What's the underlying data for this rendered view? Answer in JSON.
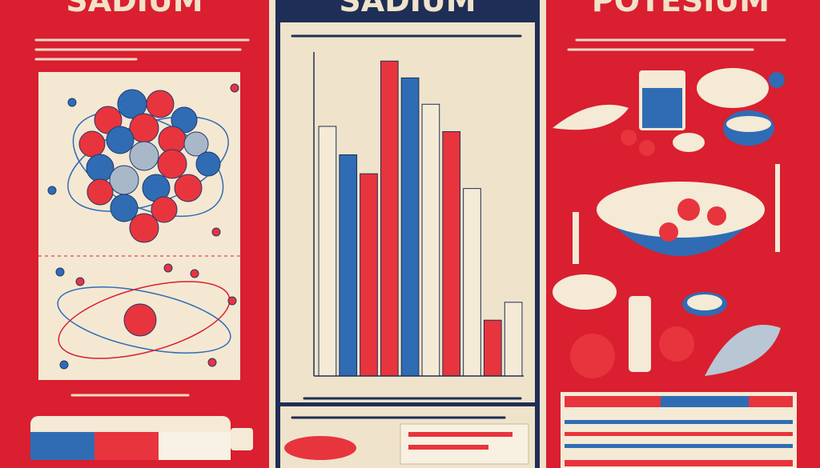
{
  "panels": [
    {
      "title": "SADIUM"
    },
    {
      "title": "SADIUM"
    },
    {
      "title": "POTESIUM"
    }
  ],
  "chart_data": {
    "type": "bar",
    "categories": [
      null,
      null,
      null,
      null,
      null,
      null,
      null,
      null,
      null,
      null
    ],
    "values": [
      237,
      210,
      192,
      299,
      283,
      258,
      232,
      178,
      53,
      70
    ],
    "colors": [
      "#f4ead6",
      "#2f6cb4",
      "#e8343d",
      "#e8343d",
      "#2f6cb4",
      "#f4ead6",
      "#e8343d",
      "#f4ead6",
      "#e8343d",
      "#f4ead6"
    ],
    "ylim": [
      0,
      300
    ]
  }
}
